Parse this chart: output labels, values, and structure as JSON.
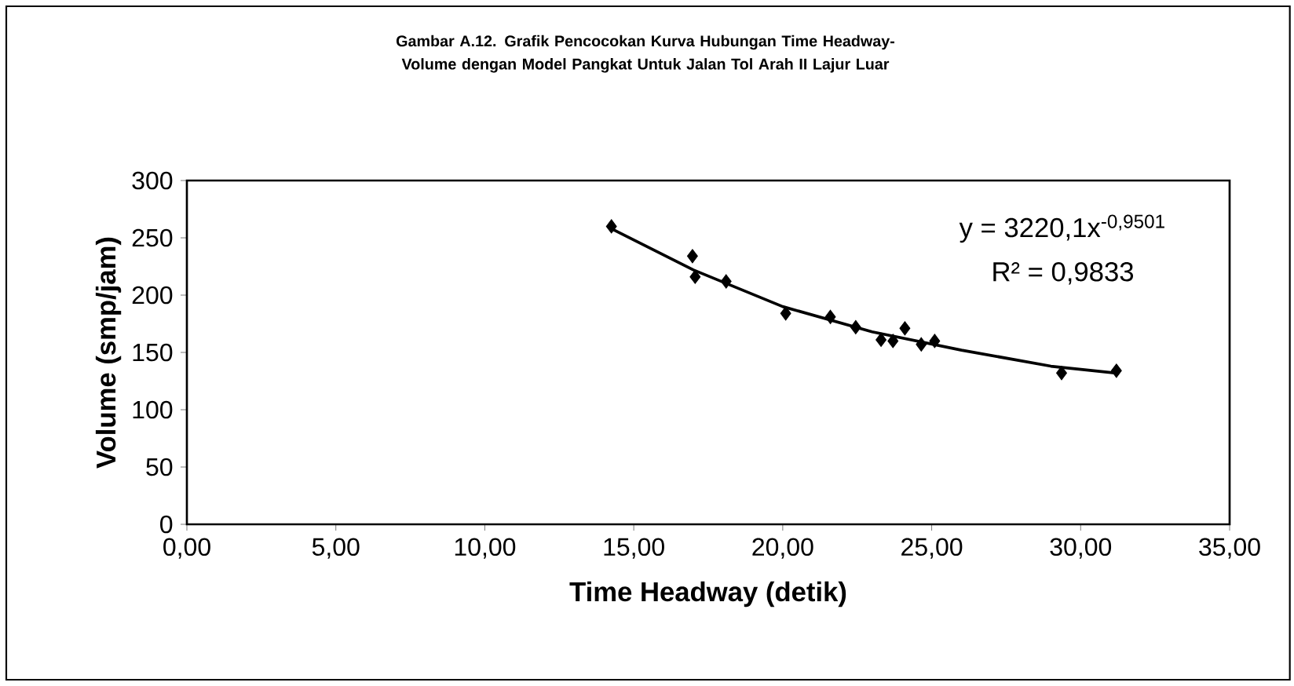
{
  "chart_data": {
    "type": "scatter",
    "title": "Gambar A.12. Grafik Pencocokan Kurva Hubungan Time Headway-Volume dengan Model Pangkat Untuk Jalan Tol Arah II Lajur Luar",
    "xlabel": "Time Headway (detik)",
    "ylabel": "Volume (smp/jam)",
    "marker": "diamond",
    "series": [
      {
        "color": "#000000",
        "x": [
          14.25,
          16.97,
          17.06,
          18.1,
          20.1,
          21.6,
          22.45,
          23.3,
          23.7,
          24.1,
          24.65,
          25.1,
          29.36,
          31.2
        ],
        "values": [
          260,
          234,
          216,
          212,
          184,
          181,
          172,
          161,
          160,
          171,
          157,
          160,
          132,
          134
        ]
      },
      {
        "type": "line",
        "marker": "none",
        "color": "#000000",
        "x": [
          14.25,
          17,
          20,
          23,
          26,
          29,
          31.2
        ],
        "values": [
          258,
          222,
          190,
          168,
          152,
          138,
          132
        ]
      }
    ],
    "xlim": [
      0,
      35
    ],
    "ylim": [
      0,
      300
    ],
    "xticks": [
      {
        "value": 0,
        "label": "0,00"
      },
      {
        "value": 5,
        "label": "5,00"
      },
      {
        "value": 10,
        "label": "10,00"
      },
      {
        "value": 15,
        "label": "15,00"
      },
      {
        "value": 20,
        "label": "20,00"
      },
      {
        "value": 25,
        "label": "25,00"
      },
      {
        "value": 30,
        "label": "30,00"
      },
      {
        "value": 35,
        "label": "35,00"
      }
    ],
    "yticks": [
      0,
      50,
      100,
      150,
      200,
      250,
      300
    ],
    "annotations": [
      "y = 3220,1x$^{-0,9501}$",
      "R² = 0,9833"
    ]
  }
}
